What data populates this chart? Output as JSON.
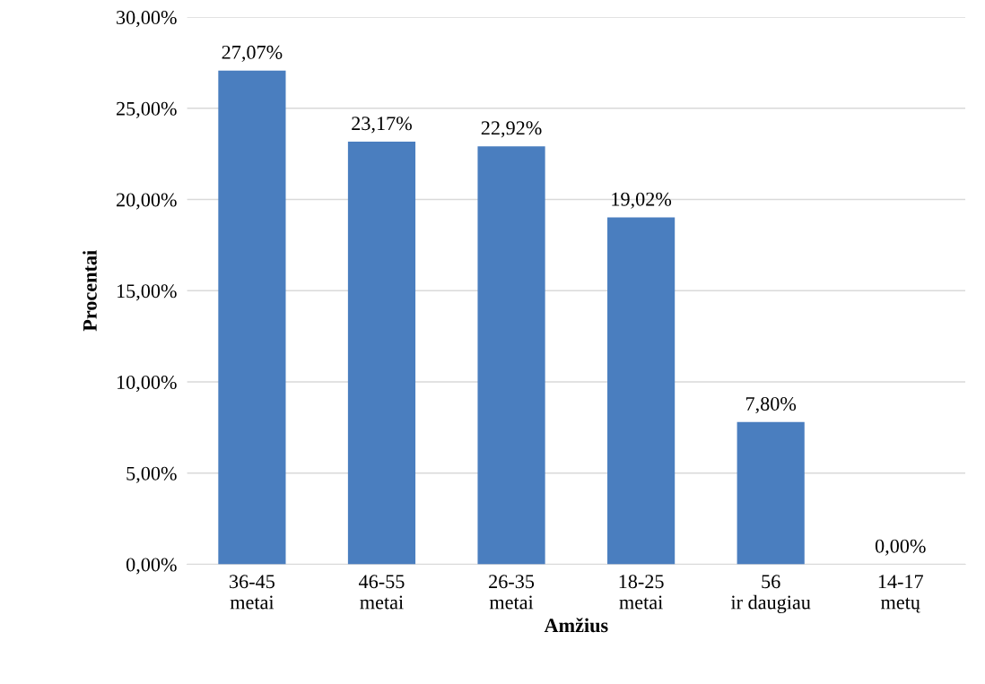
{
  "chart_data": {
    "type": "bar",
    "xlabel": "Amžius",
    "ylabel": "Procentai",
    "categories": [
      "36-45\nmetai",
      "46-55\nmetai",
      "26-35\nmetai",
      "18-25\nmetai",
      "56\nir daugiau",
      "14-17\nmetų"
    ],
    "values": [
      27.07,
      23.17,
      22.92,
      19.02,
      7.8,
      0.0
    ],
    "value_labels": [
      "27,07%",
      "23,17%",
      "22,92%",
      "19,02%",
      "7,80%",
      "0,00%"
    ],
    "color": "#4a7ebf",
    "ylim": [
      0,
      30
    ],
    "yticks": [
      {
        "value": 0,
        "label": "0,00%"
      },
      {
        "value": 5,
        "label": "5,00%"
      },
      {
        "value": 10,
        "label": "10,00%"
      },
      {
        "value": 15,
        "label": "15,00%"
      },
      {
        "value": 20,
        "label": "20,00%"
      },
      {
        "value": 25,
        "label": "25,00%"
      },
      {
        "value": 30,
        "label": "30,00%"
      }
    ],
    "grid": "y"
  }
}
